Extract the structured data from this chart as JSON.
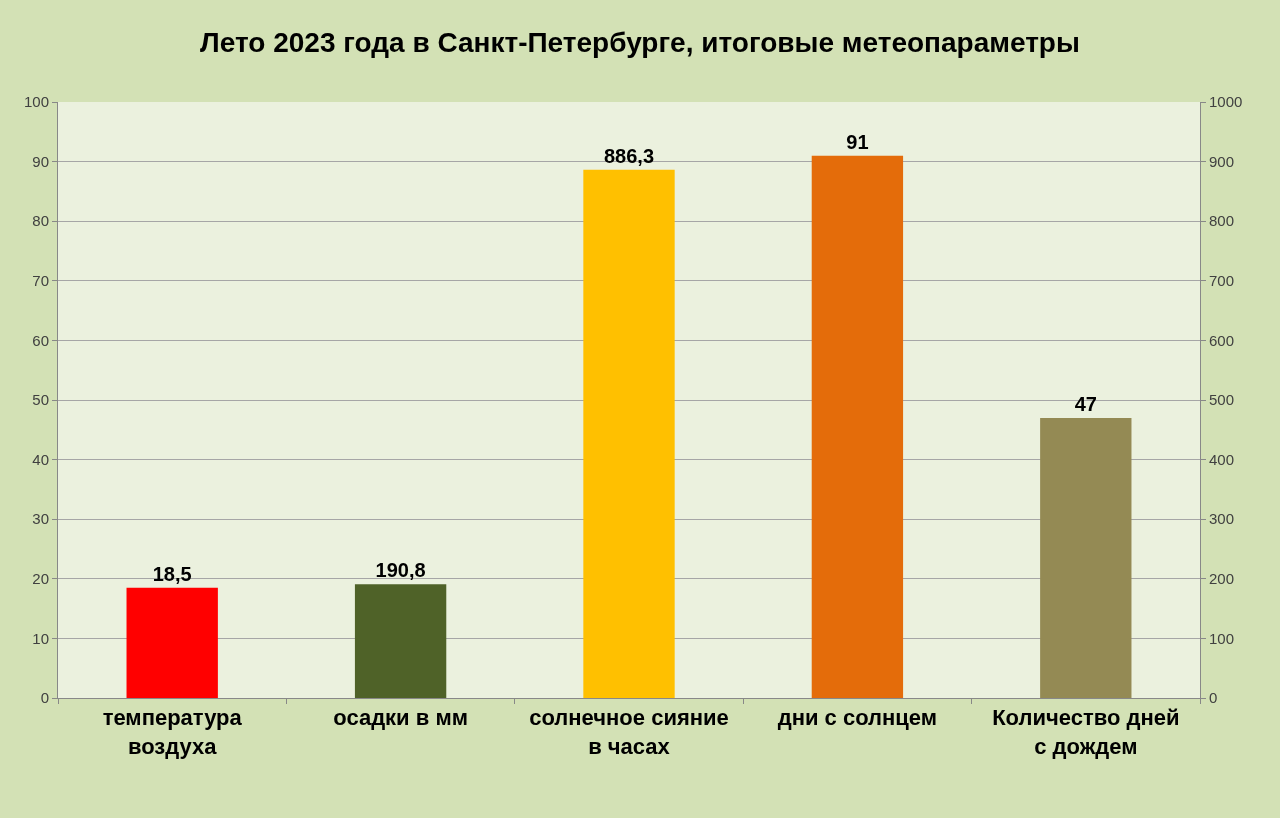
{
  "chart_data": {
    "type": "bar",
    "title": "Лето 2023 года в Санкт-Петербурге, итоговые метеопараметры",
    "categories": [
      "температура воздуха",
      "осадки в мм",
      "солнечное сияние в часах",
      "дни с солнцем",
      "Количество дней с дождем"
    ],
    "series": [
      {
        "color": "#ff0000",
        "values": [
          18.5,
          null,
          null,
          null,
          null
        ],
        "value_labels": [
          "18,5",
          null,
          null,
          null,
          null
        ]
      },
      {
        "color": "#4f6228",
        "axis": "y2",
        "values": [
          null,
          190.8,
          null,
          null,
          null
        ],
        "value_labels": [
          null,
          "190,8",
          null,
          null,
          null
        ]
      },
      {
        "color": "#ffc000",
        "axis": "y2",
        "values": [
          null,
          null,
          886.3,
          null,
          null
        ],
        "value_labels": [
          null,
          null,
          "886,3",
          null,
          null
        ]
      },
      {
        "color": "#e46c0a",
        "values": [
          null,
          null,
          null,
          91,
          null
        ],
        "value_labels": [
          null,
          null,
          null,
          "91",
          null
        ]
      },
      {
        "color": "#948a54",
        "values": [
          null,
          null,
          null,
          null,
          47
        ],
        "value_labels": [
          null,
          null,
          null,
          null,
          "47"
        ]
      }
    ],
    "ylim": [
      0,
      100
    ],
    "yticks": [
      0,
      10,
      20,
      30,
      40,
      50,
      60,
      70,
      80,
      90,
      100
    ],
    "y2lim": [
      0,
      1000
    ],
    "y2ticks": [
      0,
      100,
      200,
      300,
      400,
      500,
      600,
      700,
      800,
      900,
      1000
    ],
    "grid": "y"
  }
}
